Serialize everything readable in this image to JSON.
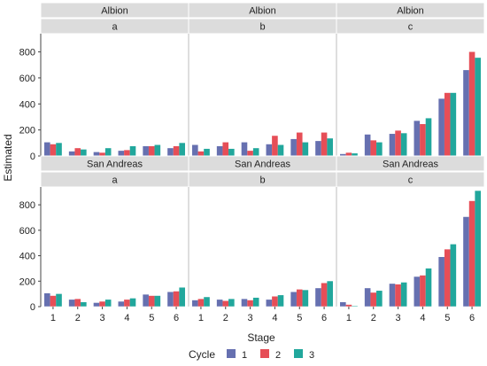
{
  "chart_data": {
    "type": "bar",
    "xlabel": "Stage",
    "ylabel": "Estimated",
    "categories": [
      "1",
      "2",
      "3",
      "4",
      "5",
      "6"
    ],
    "ylim": [
      0,
      940
    ],
    "yticks": [
      0,
      200,
      400,
      600,
      800
    ],
    "grid": false,
    "legend": {
      "title": "Cycle",
      "position": "bottom",
      "entries": [
        "1",
        "2",
        "3"
      ],
      "colors": [
        "#6670b0",
        "#e64e57",
        "#21a79c"
      ]
    },
    "facet_strip_color": "#dcdcdc",
    "panels": [
      {
        "row": "Albion",
        "col": "a",
        "series": [
          {
            "name": "1",
            "values": [
              105,
              35,
              30,
              40,
              75,
              60
            ]
          },
          {
            "name": "2",
            "values": [
              90,
              60,
              25,
              45,
              75,
              75
            ]
          },
          {
            "name": "3",
            "values": [
              100,
              50,
              60,
              75,
              85,
              100
            ]
          }
        ]
      },
      {
        "row": "Albion",
        "col": "b",
        "series": [
          {
            "name": "1",
            "values": [
              85,
              75,
              105,
              90,
              130,
              115
            ]
          },
          {
            "name": "2",
            "values": [
              35,
              105,
              40,
              155,
              180,
              180
            ]
          },
          {
            "name": "3",
            "values": [
              55,
              55,
              60,
              85,
              105,
              135
            ]
          }
        ]
      },
      {
        "row": "Albion",
        "col": "c",
        "series": [
          {
            "name": "1",
            "values": [
              15,
              165,
              170,
              270,
              440,
              660
            ]
          },
          {
            "name": "2",
            "values": [
              25,
              120,
              195,
              245,
              485,
              800
            ]
          },
          {
            "name": "3",
            "values": [
              20,
              105,
              175,
              290,
              485,
              755
            ]
          }
        ]
      },
      {
        "row": "San Andreas",
        "col": "a",
        "series": [
          {
            "name": "1",
            "values": [
              105,
              55,
              30,
              40,
              95,
              115
            ]
          },
          {
            "name": "2",
            "values": [
              85,
              60,
              40,
              55,
              85,
              120
            ]
          },
          {
            "name": "3",
            "values": [
              100,
              35,
              55,
              65,
              85,
              150
            ]
          }
        ]
      },
      {
        "row": "San Andreas",
        "col": "b",
        "series": [
          {
            "name": "1",
            "values": [
              50,
              55,
              60,
              55,
              115,
              145
            ]
          },
          {
            "name": "2",
            "values": [
              60,
              45,
              50,
              80,
              135,
              185
            ]
          },
          {
            "name": "3",
            "values": [
              75,
              60,
              70,
              90,
              130,
              200
            ]
          }
        ]
      },
      {
        "row": "San Andreas",
        "col": "c",
        "series": [
          {
            "name": "1",
            "values": [
              35,
              145,
              180,
              235,
              390,
              705
            ]
          },
          {
            "name": "2",
            "values": [
              15,
              110,
              175,
              245,
              450,
              830
            ]
          },
          {
            "name": "3",
            "values": [
              5,
              125,
              190,
              300,
              490,
              910
            ]
          }
        ]
      }
    ]
  }
}
